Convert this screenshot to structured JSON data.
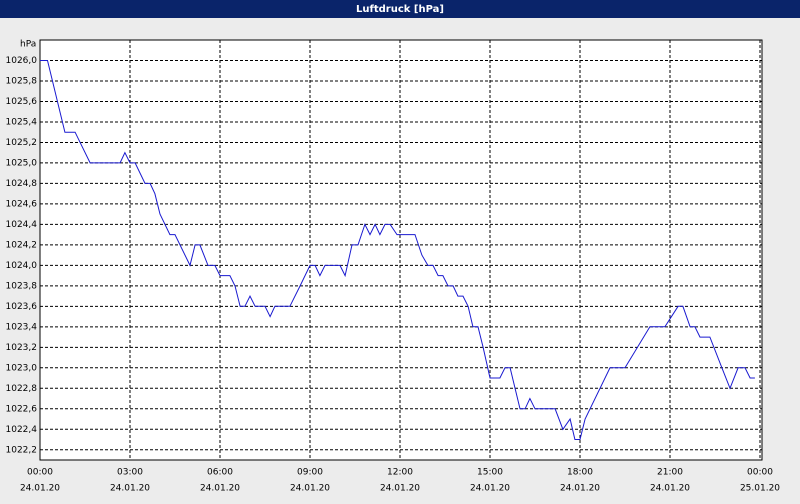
{
  "chart_data": {
    "type": "line",
    "title": "Luftdruck [hPa]",
    "y_unit": "hPa",
    "color": "#1a1ad0",
    "grid": true,
    "xlim": [
      0,
      24
    ],
    "ylim": [
      1022.1,
      1026.2
    ],
    "xticks": [
      {
        "value": 0,
        "label": "00:00",
        "date": "24.01.20"
      },
      {
        "value": 3,
        "label": "03:00",
        "date": "24.01.20"
      },
      {
        "value": 6,
        "label": "06:00",
        "date": "24.01.20"
      },
      {
        "value": 9,
        "label": "09:00",
        "date": "24.01.20"
      },
      {
        "value": 12,
        "label": "12:00",
        "date": "24.01.20"
      },
      {
        "value": 15,
        "label": "15:00",
        "date": "24.01.20"
      },
      {
        "value": 18,
        "label": "18:00",
        "date": "24.01.20"
      },
      {
        "value": 21,
        "label": "21:00",
        "date": "24.01.20"
      },
      {
        "value": 24,
        "label": "00:00",
        "date": "25.01.20"
      }
    ],
    "yticks": [
      {
        "value": 1022.2,
        "label": "1022,2"
      },
      {
        "value": 1022.4,
        "label": "1022,4"
      },
      {
        "value": 1022.6,
        "label": "1022,6"
      },
      {
        "value": 1022.8,
        "label": "1022,8"
      },
      {
        "value": 1023.0,
        "label": "1023,0"
      },
      {
        "value": 1023.2,
        "label": "1023,2"
      },
      {
        "value": 1023.4,
        "label": "1023,4"
      },
      {
        "value": 1023.6,
        "label": "1023,6"
      },
      {
        "value": 1023.8,
        "label": "1023,8"
      },
      {
        "value": 1024.0,
        "label": "1024,0"
      },
      {
        "value": 1024.2,
        "label": "1024,2"
      },
      {
        "value": 1024.4,
        "label": "1024,4"
      },
      {
        "value": 1024.6,
        "label": "1024,6"
      },
      {
        "value": 1024.8,
        "label": "1024,8"
      },
      {
        "value": 1025.0,
        "label": "1025,0"
      },
      {
        "value": 1025.2,
        "label": "1025,2"
      },
      {
        "value": 1025.4,
        "label": "1025,4"
      },
      {
        "value": 1025.6,
        "label": "1025,6"
      },
      {
        "value": 1025.8,
        "label": "1025,8"
      },
      {
        "value": 1026.0,
        "label": "1026,0"
      }
    ],
    "x": [
      0,
      0.25,
      0.83,
      1.17,
      1.67,
      2.67,
      2.83,
      3.0,
      3.17,
      3.5,
      3.67,
      3.83,
      4.0,
      4.33,
      4.5,
      5.0,
      5.17,
      5.33,
      5.6,
      5.83,
      6.0,
      6.33,
      6.5,
      6.67,
      6.83,
      7.0,
      7.17,
      7.5,
      7.67,
      7.83,
      8.33,
      8.67,
      9.0,
      9.17,
      9.33,
      9.5,
      10.0,
      10.17,
      10.4,
      10.6,
      10.83,
      11.0,
      11.17,
      11.33,
      11.5,
      11.67,
      11.9,
      12.5,
      12.73,
      12.93,
      13.1,
      13.27,
      13.43,
      13.6,
      13.77,
      13.93,
      14.1,
      14.27,
      14.43,
      14.6,
      14.77,
      15.0,
      15.33,
      15.5,
      15.67,
      16.0,
      16.17,
      16.33,
      16.5,
      17.17,
      17.43,
      17.67,
      17.83,
      18.0,
      18.17,
      19.0,
      19.5,
      20.33,
      20.83,
      21.27,
      21.43,
      21.67,
      21.83,
      22.0,
      22.33,
      22.73,
      23.0,
      23.27,
      23.5,
      23.67,
      23.83
    ],
    "values": [
      1026.0,
      1026.0,
      1025.3,
      1025.3,
      1025.0,
      1025.0,
      1025.1,
      1025.0,
      1025.0,
      1024.8,
      1024.8,
      1024.7,
      1024.5,
      1024.3,
      1024.3,
      1024.0,
      1024.2,
      1024.2,
      1024.0,
      1024.0,
      1023.9,
      1023.9,
      1023.8,
      1023.6,
      1023.6,
      1023.7,
      1023.6,
      1023.6,
      1023.5,
      1023.6,
      1023.6,
      1023.8,
      1024.0,
      1024.0,
      1023.9,
      1024.0,
      1024.0,
      1023.9,
      1024.2,
      1024.2,
      1024.4,
      1024.3,
      1024.4,
      1024.3,
      1024.4,
      1024.4,
      1024.3,
      1024.3,
      1024.1,
      1024.0,
      1024.0,
      1023.9,
      1023.9,
      1023.8,
      1023.8,
      1023.7,
      1023.7,
      1023.6,
      1023.4,
      1023.4,
      1023.2,
      1022.9,
      1022.9,
      1023.0,
      1023.0,
      1022.6,
      1022.6,
      1022.7,
      1022.6,
      1022.6,
      1022.4,
      1022.5,
      1022.3,
      1022.3,
      1022.5,
      1023.0,
      1023.0,
      1023.4,
      1023.4,
      1023.6,
      1023.6,
      1023.4,
      1023.4,
      1023.3,
      1023.3,
      1023.0,
      1022.8,
      1023.0,
      1023.0,
      1022.9,
      1022.9
    ]
  }
}
